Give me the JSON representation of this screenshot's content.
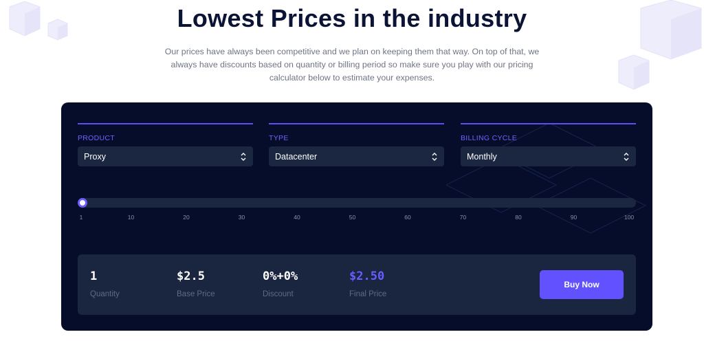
{
  "header": {
    "title": "Lowest Prices in the industry",
    "subtitle_lines": [
      "Our prices have always been competitive and we plan on keeping them that way. On top of that, we",
      "always have discounts based on quantity or billing period so make sure you play with our pricing",
      "calculator below to estimate your expenses."
    ]
  },
  "calculator": {
    "fields": [
      {
        "label": "PRODUCT",
        "value": "Proxy"
      },
      {
        "label": "TYPE",
        "value": "Datacenter"
      },
      {
        "label": "BILLING CYCLE",
        "value": "Monthly"
      }
    ],
    "slider": {
      "value": 1,
      "min": 1,
      "max": 100,
      "ticks": [
        "1",
        "10",
        "20",
        "30",
        "40",
        "50",
        "60",
        "70",
        "80",
        "90",
        "100"
      ]
    },
    "summary": {
      "quantity": {
        "value": "1",
        "label": "Quantity"
      },
      "base_price": {
        "value": "$2.5",
        "label": "Base Price"
      },
      "discount": {
        "value": "0%+0%",
        "label": "Discount"
      },
      "final_price": {
        "value": "$2.50",
        "label": "Final Price"
      },
      "buy_label": "Buy Now"
    }
  },
  "colors": {
    "panel": "#050d2a",
    "accent": "#6151ff",
    "heading": "#0c1436"
  },
  "icons": [
    "cube-decoration-icon",
    "chevron-updown-icon",
    "diamond-outline-decoration-icon"
  ]
}
